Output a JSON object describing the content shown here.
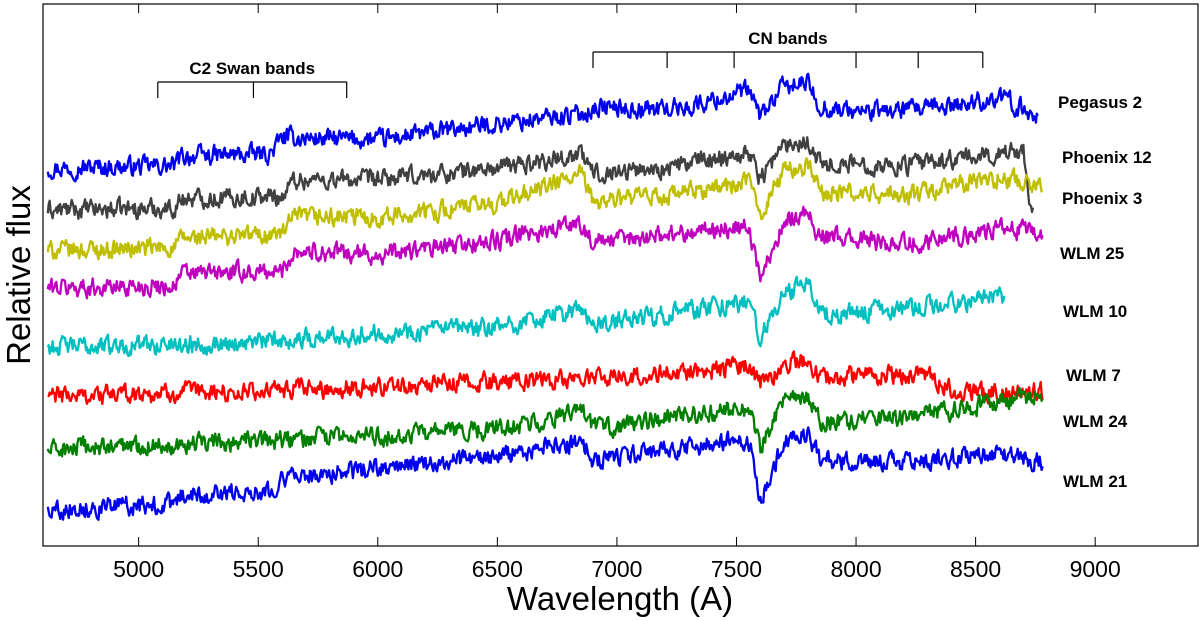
{
  "chart_data": {
    "type": "line",
    "title": "",
    "xlabel": "Wavelength (A)",
    "ylabel": "Relative flux",
    "xlim": [
      4600,
      9430
    ],
    "ylim": [
      0,
      10
    ],
    "x_ticks": [
      5000,
      5500,
      6000,
      6500,
      7000,
      7500,
      8000,
      8500,
      9000
    ],
    "grid": false,
    "legend": "none",
    "annotations": [
      {
        "label": "C2 Swan bands",
        "positions": [
          5080,
          5480,
          5870
        ]
      },
      {
        "label": "CN bands",
        "positions": [
          6900,
          7210,
          7490,
          8000,
          8260,
          8530
        ]
      }
    ],
    "series": [
      {
        "name": "Pegasus  2",
        "color": "#0000ee",
        "x": [
          4620,
          5150,
          5180,
          5550,
          5600,
          6000,
          6500,
          6850,
          6920,
          7100,
          7300,
          7550,
          7600,
          7700,
          7800,
          7850,
          8000,
          8300,
          8600,
          8760
        ],
        "y": [
          7.7,
          7.75,
          7.95,
          8.0,
          8.35,
          8.3,
          8.65,
          8.85,
          9.0,
          8.95,
          9.0,
          9.35,
          8.8,
          9.45,
          9.5,
          9.0,
          8.9,
          8.95,
          9.2,
          8.8
        ]
      },
      {
        "name": "Phoenix 12",
        "color": "#404040",
        "x": [
          4620,
          5150,
          5180,
          5600,
          5650,
          6000,
          6500,
          6850,
          6900,
          7200,
          7550,
          7600,
          7700,
          7800,
          7850,
          8200,
          8600,
          8700,
          8720,
          8740
        ],
        "y": [
          6.8,
          6.85,
          7.05,
          7.1,
          7.45,
          7.45,
          7.7,
          8.0,
          7.6,
          7.7,
          8.05,
          7.5,
          8.2,
          8.3,
          7.8,
          7.75,
          8.0,
          8.1,
          7.2,
          6.8
        ]
      },
      {
        "name": "Phoenix 3",
        "color": "#bfbf00",
        "x": [
          4620,
          5150,
          5180,
          5600,
          5650,
          6000,
          6500,
          6850,
          6900,
          7200,
          7550,
          7600,
          7700,
          7800,
          7850,
          8200,
          8600,
          8780
        ],
        "y": [
          5.95,
          6.0,
          6.2,
          6.3,
          6.65,
          6.65,
          6.95,
          7.55,
          7.0,
          7.1,
          7.4,
          6.75,
          7.65,
          7.75,
          7.2,
          7.1,
          7.5,
          7.35
        ]
      },
      {
        "name": "WLM 25",
        "color": "#bf00bf",
        "x": [
          4620,
          5150,
          5180,
          5600,
          5650,
          6000,
          6500,
          6850,
          6900,
          7200,
          7550,
          7600,
          7700,
          7800,
          7850,
          8200,
          8600,
          8780
        ],
        "y": [
          5.15,
          5.2,
          5.45,
          5.5,
          5.95,
          5.85,
          6.15,
          6.55,
          6.1,
          6.3,
          6.45,
          5.35,
          6.6,
          6.75,
          6.25,
          6.1,
          6.4,
          6.3
        ]
      },
      {
        "name": "WLM 10",
        "color": "#00bfbf",
        "x": [
          4620,
          5150,
          5500,
          6000,
          6500,
          6850,
          6900,
          7200,
          7550,
          7600,
          7700,
          7800,
          7850,
          8200,
          8600,
          8620
        ],
        "y": [
          3.9,
          3.95,
          4.0,
          4.2,
          4.3,
          4.7,
          4.35,
          4.6,
          4.85,
          4.1,
          5.0,
          5.25,
          4.6,
          4.7,
          4.95,
          4.95
        ]
      },
      {
        "name": "WLM 7",
        "color": "#ff0000",
        "x": [
          4620,
          5000,
          5500,
          6000,
          6500,
          7000,
          7500,
          7550,
          7600,
          7700,
          7800,
          7850,
          8000,
          8300,
          8400,
          8500,
          8780
        ],
        "y": [
          2.85,
          2.9,
          2.95,
          3.05,
          3.15,
          3.25,
          3.45,
          3.55,
          3.1,
          3.55,
          3.6,
          3.2,
          3.3,
          3.3,
          2.95,
          2.9,
          2.95
        ]
      },
      {
        "name": "WLM 24",
        "color": "#007f00",
        "x": [
          4620,
          5000,
          5500,
          6000,
          6500,
          6850,
          6900,
          7200,
          7550,
          7600,
          7700,
          7800,
          7850,
          8200,
          8600,
          8780
        ],
        "y": [
          1.7,
          1.8,
          1.9,
          2.0,
          2.15,
          2.5,
          2.15,
          2.35,
          2.6,
          1.75,
          2.75,
          2.85,
          2.3,
          2.4,
          2.7,
          2.9
        ]
      },
      {
        "name": "WLM 21",
        "color": "#0000ee",
        "x": [
          4620,
          5150,
          5180,
          5550,
          5600,
          6000,
          6500,
          6850,
          6900,
          7200,
          7550,
          7600,
          7700,
          7800,
          7850,
          8200,
          8600,
          8780
        ],
        "y": [
          0.45,
          0.55,
          0.75,
          0.85,
          1.1,
          1.3,
          1.55,
          1.9,
          1.5,
          1.7,
          1.95,
          0.6,
          1.95,
          2.0,
          1.5,
          1.45,
          1.6,
          1.45
        ]
      }
    ]
  }
}
